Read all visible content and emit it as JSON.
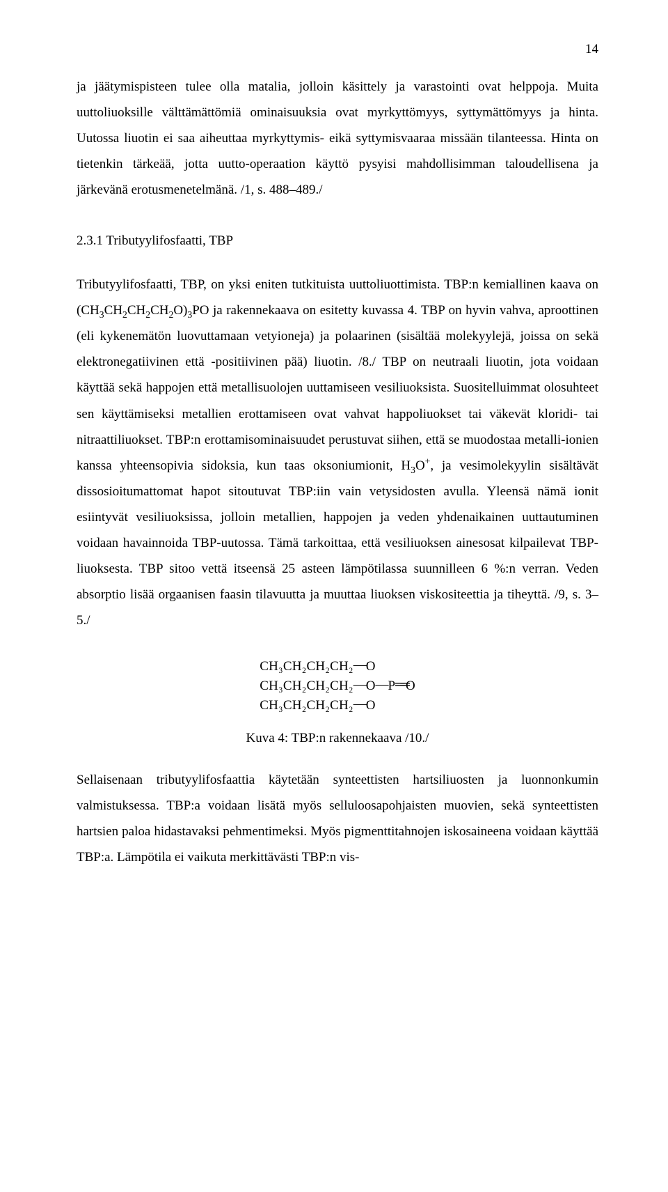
{
  "page_number": "14",
  "para_top": "ja jäätymispisteen tulee olla matalia, jolloin käsittely ja varastointi ovat helppoja. Muita uuttoliuoksille välttämättömiä ominaisuuksia ovat myrkyttömyys, syttymättömyys ja hinta. Uutossa liuotin ei saa aiheuttaa myrkyttymis- eikä syttymisvaaraa missään tilanteessa. Hinta on tietenkin tärkeää, jotta uutto-operaation käyttö pysyisi mahdollisimman taloudellisena ja järkevänä erotusmenetelmänä. /1, s. 488–489./",
  "section_heading": "2.3.1 Tributyylifosfaatti, TBP",
  "para_main_before": "Tributyylifosfaatti, TBP, on yksi eniten tutkituista uuttoliuottimista. TBP:n kemiallinen kaava on (CH",
  "para_main_formula_tail": "PO ja rakennekaava on esitetty kuvassa 4. TBP on hyvin vahva, aproottinen (eli kykenemätön luovuttamaan vetyioneja) ja polaarinen (sisältää molekyylejä, joissa on sekä elektronegatiivinen että -positiivinen pää) liuotin. /8./ TBP on neutraali liuotin, jota voidaan käyttää sekä happojen että metallisuolojen uuttamiseen vesiliuoksista. Suositelluimmat olosuhteet sen käyttämiseksi metallien erottamiseen ovat vahvat happoliuokset tai väkevät kloridi- tai nitraattiliuokset. TBP:n erottamisominaisuudet perustuvat siihen, että se muodostaa metalli-ionien kanssa yhteensopivia sidoksia, kun taas oksoniumionit, H",
  "para_main_after_h3o": ", ja vesimolekyylin sisältävät dissosioitumattomat hapot sitoutuvat TBP:iin vain vetysidosten avulla. Yleensä nämä ionit esiintyvät vesiliuoksissa, jolloin metallien, happojen ja veden yhdenaikainen uuttautuminen voidaan havainnoida TBP-uutossa. Tämä tarkoittaa, että vesiliuoksen ainesosat kilpailevat TBP-liuoksesta. TBP sitoo vettä itseensä 25 asteen lämpötilassa suunnilleen 6 %:n verran. Veden absorptio lisää orgaanisen faasin tilavuutta ja muuttaa liuoksen viskositeettia ja tiheyttä. /9, s. 3–5./",
  "figure_row1_chem": "CH₃CH₂CH₂CH₂",
  "figure_row2_chem": "CH₃CH₂CH₂CH₂",
  "figure_row3_chem": "CH₃CH₂CH₂CH₂",
  "figure_O": "O",
  "figure_P": "P",
  "figure_caption": "Kuva 4: TBP:n rakennekaava /10./",
  "para_bottom": "Sellaisenaan tributyylifosfaattia käytetään synteettisten hartsiliuosten ja luonnonkumin valmistuksessa. TBP:a voidaan lisätä myös selluloosapohjaisten muovien, sekä synteettisten hartsien paloa hidastavaksi pehmentimeksi. Myös pigmenttitahnojen iskosaineena voidaan käyttää TBP:a. Lämpötila ei vaikuta merkittävästi TBP:n vis-"
}
